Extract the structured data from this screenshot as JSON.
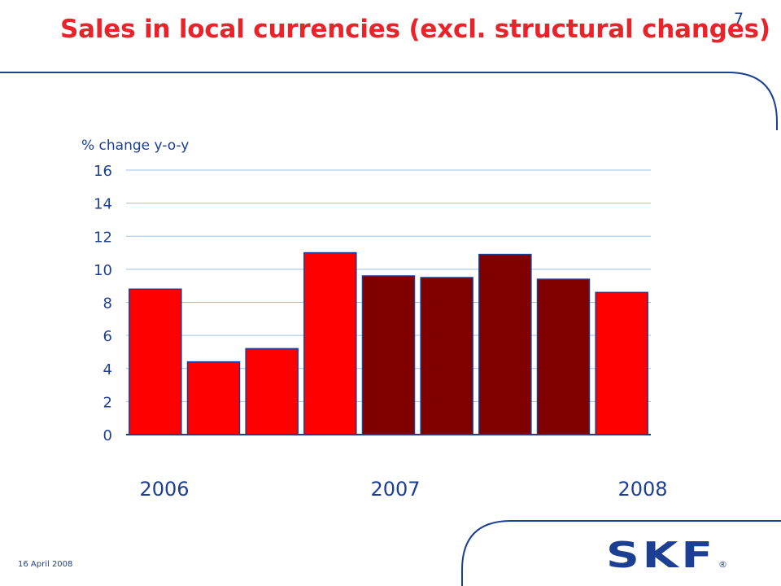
{
  "slide": {
    "title": "Sales in local currencies (excl. structural changes)",
    "page_number": "7",
    "date": "16 April 2008",
    "logo_text": "SKF",
    "registered_mark": "®"
  },
  "colors": {
    "title": "#e8232a",
    "text": "#1c3f94",
    "decor_line": "#1c3f94",
    "gridline": "#9ec3e0",
    "axis": "#1c3f94",
    "bar_2006_2008": "#ff0000",
    "bar_2007": "#800000",
    "bar_border": "#1c3f94"
  },
  "chart_data": {
    "type": "bar",
    "ylabel": "% change y-o-y",
    "ylim": [
      0,
      16
    ],
    "yticks": [
      0,
      2,
      4,
      6,
      8,
      10,
      12,
      14,
      16
    ],
    "grid": true,
    "bars": [
      {
        "value": 8.8,
        "year": "2006"
      },
      {
        "value": 4.4,
        "year": "2006"
      },
      {
        "value": 5.2,
        "year": "2006"
      },
      {
        "value": 11.0,
        "year": "2006"
      },
      {
        "value": 9.6,
        "year": "2007"
      },
      {
        "value": 9.5,
        "year": "2007"
      },
      {
        "value": 10.9,
        "year": "2007"
      },
      {
        "value": 9.4,
        "year": "2007"
      },
      {
        "value": 8.6,
        "year": "2008"
      }
    ],
    "year_labels": [
      "2006",
      "2007",
      "2008"
    ]
  }
}
